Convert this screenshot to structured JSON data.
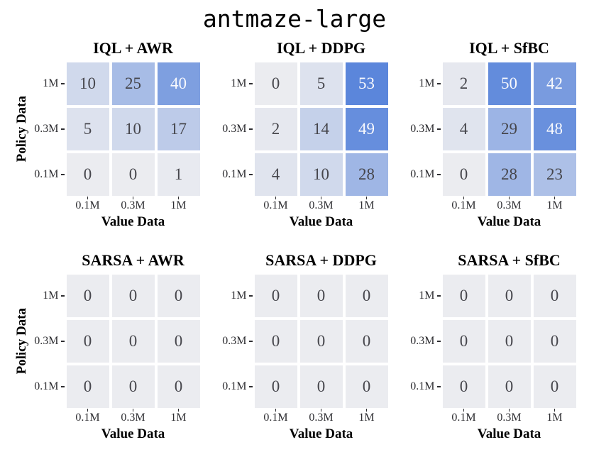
{
  "title": "antmaze-large",
  "axes": {
    "xlabel": "Value Data",
    "ylabel": "Policy Data",
    "x_ticklabels": [
      "0.1M",
      "0.3M",
      "1M"
    ],
    "y_ticklabels": [
      "1M",
      "0.3M",
      "0.1M"
    ]
  },
  "scale": {
    "vmin": 0,
    "vmax": 53
  },
  "colors": {
    "cell_low": "#ebecf0",
    "cell_high": "#5b86db",
    "value_text_dark": "#46464c",
    "value_text_light": "#f8f9fd",
    "tick_text": "#2e2e32",
    "title_text": "#000000"
  },
  "chart_data": [
    {
      "type": "heatmap",
      "title": "IQL + AWR",
      "show_ylabel": true,
      "xlabel": "Value Data",
      "ylabel": "Policy Data",
      "col_labels": [
        "0.1M",
        "0.3M",
        "1M"
      ],
      "row_labels": [
        "1M",
        "0.3M",
        "0.1M"
      ],
      "values": [
        [
          10,
          25,
          40
        ],
        [
          5,
          10,
          17
        ],
        [
          0,
          0,
          1
        ]
      ]
    },
    {
      "type": "heatmap",
      "title": "IQL + DDPG",
      "show_ylabel": false,
      "xlabel": "Value Data",
      "col_labels": [
        "0.1M",
        "0.3M",
        "1M"
      ],
      "row_labels": [
        "1M",
        "0.3M",
        "0.1M"
      ],
      "values": [
        [
          0,
          5,
          53
        ],
        [
          2,
          14,
          49
        ],
        [
          4,
          10,
          28
        ]
      ]
    },
    {
      "type": "heatmap",
      "title": "IQL + SfBC",
      "show_ylabel": false,
      "xlabel": "Value Data",
      "col_labels": [
        "0.1M",
        "0.3M",
        "1M"
      ],
      "row_labels": [
        "1M",
        "0.3M",
        "0.1M"
      ],
      "values": [
        [
          2,
          50,
          42
        ],
        [
          4,
          29,
          48
        ],
        [
          0,
          28,
          23
        ]
      ]
    },
    {
      "type": "heatmap",
      "title": "SARSA + AWR",
      "show_ylabel": true,
      "xlabel": "Value Data",
      "ylabel": "Policy Data",
      "col_labels": [
        "0.1M",
        "0.3M",
        "1M"
      ],
      "row_labels": [
        "1M",
        "0.3M",
        "0.1M"
      ],
      "values": [
        [
          0,
          0,
          0
        ],
        [
          0,
          0,
          0
        ],
        [
          0,
          0,
          0
        ]
      ]
    },
    {
      "type": "heatmap",
      "title": "SARSA + DDPG",
      "show_ylabel": false,
      "xlabel": "Value Data",
      "col_labels": [
        "0.1M",
        "0.3M",
        "1M"
      ],
      "row_labels": [
        "1M",
        "0.3M",
        "0.1M"
      ],
      "values": [
        [
          0,
          0,
          0
        ],
        [
          0,
          0,
          0
        ],
        [
          0,
          0,
          0
        ]
      ]
    },
    {
      "type": "heatmap",
      "title": "SARSA + SfBC",
      "show_ylabel": false,
      "xlabel": "Value Data",
      "col_labels": [
        "0.1M",
        "0.3M",
        "1M"
      ],
      "row_labels": [
        "1M",
        "0.3M",
        "0.1M"
      ],
      "values": [
        [
          0,
          0,
          0
        ],
        [
          0,
          0,
          0
        ],
        [
          0,
          0,
          0
        ]
      ]
    }
  ]
}
